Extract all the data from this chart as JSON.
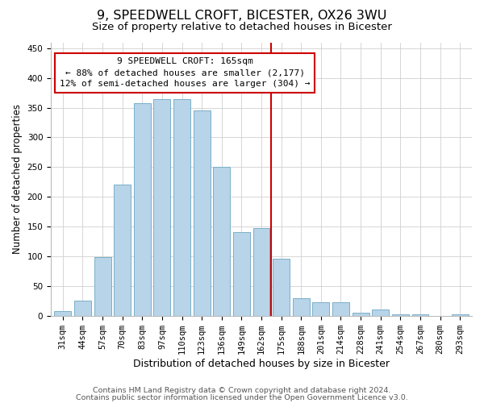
{
  "title": "9, SPEEDWELL CROFT, BICESTER, OX26 3WU",
  "subtitle": "Size of property relative to detached houses in Bicester",
  "xlabel": "Distribution of detached houses by size in Bicester",
  "ylabel": "Number of detached properties",
  "bar_labels": [
    "31sqm",
    "44sqm",
    "57sqm",
    "70sqm",
    "83sqm",
    "97sqm",
    "110sqm",
    "123sqm",
    "136sqm",
    "149sqm",
    "162sqm",
    "175sqm",
    "188sqm",
    "201sqm",
    "214sqm",
    "228sqm",
    "241sqm",
    "254sqm",
    "267sqm",
    "280sqm",
    "293sqm"
  ],
  "bar_values": [
    8,
    25,
    98,
    220,
    358,
    365,
    365,
    345,
    250,
    140,
    148,
    96,
    30,
    22,
    22,
    5,
    10,
    2,
    2,
    0,
    2
  ],
  "bar_color": "#b8d4e8",
  "bar_edge_color": "#7aafc8",
  "vline_x": 10.5,
  "vline_color": "#cc0000",
  "annotation_title": "9 SPEEDWELL CROFT: 165sqm",
  "annotation_line1": "← 88% of detached houses are smaller (2,177)",
  "annotation_line2": "12% of semi-detached houses are larger (304) →",
  "annotation_box_color": "#ffffff",
  "annotation_box_edge": "#cc0000",
  "footer1": "Contains HM Land Registry data © Crown copyright and database right 2024.",
  "footer2": "Contains public sector information licensed under the Open Government Licence v3.0.",
  "ylim": [
    0,
    460
  ],
  "title_fontsize": 11.5,
  "subtitle_fontsize": 9.5,
  "xlabel_fontsize": 9,
  "ylabel_fontsize": 8.5,
  "tick_fontsize": 7.5,
  "footer_fontsize": 6.8,
  "ann_fontsize": 8.0,
  "yticks": [
    0,
    50,
    100,
    150,
    200,
    250,
    300,
    350,
    400,
    450
  ]
}
